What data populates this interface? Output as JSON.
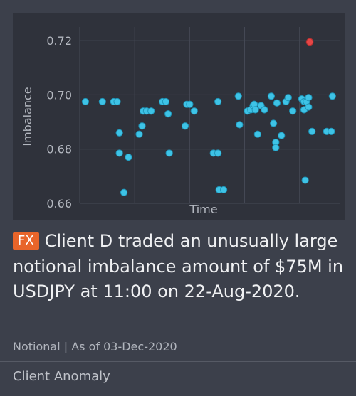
{
  "badge": "FX",
  "headline": "Client D traded an unusually large notional imbalance amount of $75M in USDJPY at 11:00 on 22-Aug-2020.",
  "meta": "Notional | As of 03-Dec-2020",
  "footer": "Client Anomaly",
  "colors": {
    "accent": "#e8652a",
    "point": "#3ec3e6",
    "anomaly": "#e64646"
  },
  "chart_data": {
    "type": "scatter",
    "xlabel": "Time",
    "ylabel": "Imbalance",
    "ylim": [
      0.66,
      0.725
    ],
    "yticks": [
      "0.72",
      "0.70",
      "0.68",
      "0.66"
    ],
    "grid": true,
    "series": [
      {
        "points": [
          [
            1,
            0.6975
          ],
          [
            4,
            0.6975
          ],
          [
            6,
            0.6975
          ],
          [
            6.6,
            0.6975
          ],
          [
            7,
            0.686
          ],
          [
            7,
            0.6785
          ],
          [
            7.8,
            0.664
          ],
          [
            8.6,
            0.677
          ],
          [
            10.5,
            0.6855
          ],
          [
            11,
            0.6885
          ],
          [
            11.2,
            0.694
          ],
          [
            11.8,
            0.694
          ],
          [
            12.6,
            0.694
          ],
          [
            14.6,
            0.6975
          ],
          [
            15.2,
            0.6975
          ],
          [
            15.6,
            0.693
          ],
          [
            15.8,
            0.6785
          ],
          [
            18.6,
            0.6885
          ],
          [
            18.9,
            0.6965
          ],
          [
            19.4,
            0.6965
          ],
          [
            20.2,
            0.694
          ],
          [
            23.6,
            0.6785
          ],
          [
            24.4,
            0.6785
          ],
          [
            24.4,
            0.6975
          ],
          [
            24.6,
            0.665
          ],
          [
            25.4,
            0.665
          ],
          [
            28,
            0.6995
          ],
          [
            28.2,
            0.689
          ],
          [
            29.6,
            0.694
          ],
          [
            30.2,
            0.6945
          ],
          [
            30.6,
            0.696
          ],
          [
            30.8,
            0.6965
          ],
          [
            31,
            0.6945
          ],
          [
            31.4,
            0.6855
          ],
          [
            32,
            0.696
          ],
          [
            32.6,
            0.6945
          ],
          [
            33.8,
            0.6995
          ],
          [
            34.2,
            0.6895
          ],
          [
            34.6,
            0.6825
          ],
          [
            34.6,
            0.6805
          ],
          [
            34.8,
            0.697
          ],
          [
            35.6,
            0.685
          ],
          [
            36.4,
            0.6975
          ],
          [
            36.8,
            0.699
          ],
          [
            37.6,
            0.694
          ],
          [
            39.2,
            0.6985
          ],
          [
            39.6,
            0.6975
          ],
          [
            39.6,
            0.6945
          ],
          [
            39.8,
            0.6685
          ],
          [
            40,
            0.6975
          ],
          [
            40.4,
            0.699
          ],
          [
            40.4,
            0.6955
          ],
          [
            41,
            0.6865
          ],
          [
            43.6,
            0.6865
          ],
          [
            44.4,
            0.6865
          ],
          [
            44.6,
            0.6995
          ]
        ]
      }
    ],
    "highlighted_point": [
      40.6,
      0.7195
    ]
  }
}
